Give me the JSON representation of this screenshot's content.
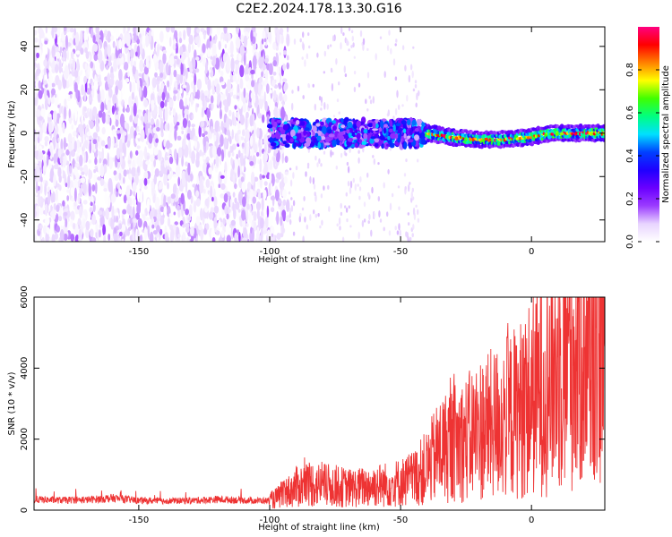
{
  "figure_title": "C2E2.2024.178.13.30.G16",
  "chart_data": [
    {
      "type": "heatmap",
      "title": "C2E2.2024.178.13.30.G16",
      "xlabel": "Height of straight line (km)",
      "ylabel": "Frequency (Hz)",
      "xlim": [
        -190,
        28
      ],
      "ylim": [
        -50,
        49
      ],
      "xticks": [
        -150,
        -100,
        -50,
        0
      ],
      "yticks": [
        -40,
        -20,
        0,
        20,
        40
      ],
      "xtick_labels": [
        "-150",
        "-100",
        "-50",
        "0"
      ],
      "ytick_labels": [
        "-40",
        "-20",
        "0",
        "20",
        "40"
      ],
      "colorbar": {
        "label": "Normalized spectral amplitude",
        "range": [
          0.0,
          1.0
        ],
        "ticks": [
          0.0,
          0.2,
          0.4,
          0.6,
          0.8
        ],
        "tick_labels": [
          "0.0",
          "0.2",
          "0.4",
          "0.6",
          "0.8"
        ],
        "colormap": [
          "#ffffff",
          "#e8d4ff",
          "#9b3cff",
          "#6a00ff",
          "#1f00ff",
          "#0040ff",
          "#00e0ff",
          "#00ff80",
          "#40ff00",
          "#ffff00",
          "#ff8000",
          "#ff0000",
          "#ff0080"
        ]
      },
      "regions": [
        {
          "name": "noise",
          "x_range": [
            -190,
            -93
          ],
          "freq_range": [
            -50,
            49
          ],
          "amplitude_range": [
            0.0,
            0.12
          ]
        },
        {
          "name": "signal-onset",
          "x_range": [
            -100,
            -40
          ],
          "center_freq": 0,
          "halfwidth_hz": 6,
          "amplitude_range": [
            0.1,
            0.5
          ]
        },
        {
          "name": "signal",
          "x_range": [
            -40,
            28
          ],
          "center_freq_start": 0,
          "center_freq_mid": -3,
          "center_freq_end": 0,
          "halfwidth_hz": 3,
          "amplitude_range": [
            0.5,
            1.0
          ]
        }
      ]
    },
    {
      "type": "line",
      "xlabel": "Height of straight line (km)",
      "ylabel": "SNR (10 * v/v)",
      "xlim": [
        -190,
        28
      ],
      "ylim": [
        0,
        6000
      ],
      "xticks": [
        -150,
        -100,
        -50,
        0
      ],
      "yticks": [
        0,
        2000,
        4000,
        6000
      ],
      "xtick_labels": [
        "-150",
        "-100",
        "-50",
        "0"
      ],
      "ytick_labels": [
        "0",
        "2000",
        "4000",
        "6000"
      ],
      "color": "#ee3333",
      "series": [
        {
          "name": "SNR",
          "x": [
            -190,
            -180,
            -170,
            -160,
            -150,
            -140,
            -130,
            -120,
            -110,
            -100,
            -95,
            -90,
            -85,
            -80,
            -75,
            -70,
            -65,
            -60,
            -55,
            -50,
            -45,
            -40,
            -35,
            -30,
            -25,
            -20,
            -15,
            -10,
            -5,
            0,
            5,
            10,
            15,
            20,
            25,
            28
          ],
          "values": [
            300,
            280,
            290,
            340,
            270,
            260,
            270,
            300,
            280,
            260,
            420,
            650,
            750,
            700,
            680,
            620,
            640,
            700,
            720,
            780,
            900,
            1200,
            1700,
            1900,
            2000,
            2300,
            2400,
            2600,
            2800,
            3200,
            3600,
            4000,
            4400,
            4700,
            4900,
            5000
          ]
        }
      ]
    }
  ]
}
